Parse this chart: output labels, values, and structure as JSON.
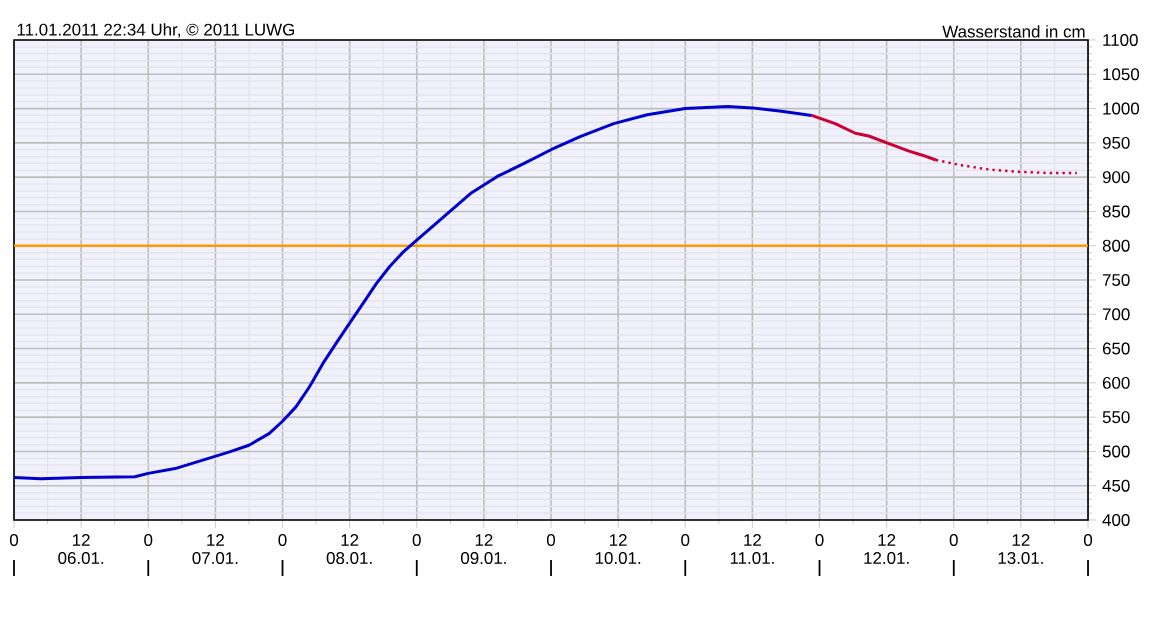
{
  "chart_data": {
    "type": "line",
    "title": "11.01.2011 22:34 Uhr, © 2011 LUWG",
    "ylabel": "Wasserstand in cm",
    "xlim": [
      "2011-01-06T00:00",
      "2011-01-14T00:00"
    ],
    "ylim": [
      400,
      1100
    ],
    "xticks": [
      {
        "value": "2011-01-06T00:00",
        "label": "0"
      },
      {
        "value": "2011-01-06T12:00",
        "label": "12"
      },
      {
        "value": "2011-01-07T00:00",
        "label": "0"
      },
      {
        "value": "2011-01-07T12:00",
        "label": "12"
      },
      {
        "value": "2011-01-08T00:00",
        "label": "0"
      },
      {
        "value": "2011-01-08T12:00",
        "label": "12"
      },
      {
        "value": "2011-01-09T00:00",
        "label": "0"
      },
      {
        "value": "2011-01-09T12:00",
        "label": "12"
      },
      {
        "value": "2011-01-10T00:00",
        "label": "0"
      },
      {
        "value": "2011-01-10T12:00",
        "label": "12"
      },
      {
        "value": "2011-01-11T00:00",
        "label": "0"
      },
      {
        "value": "2011-01-11T12:00",
        "label": "12"
      },
      {
        "value": "2011-01-12T00:00",
        "label": "0"
      },
      {
        "value": "2011-01-12T12:00",
        "label": "12"
      },
      {
        "value": "2011-01-13T00:00",
        "label": "0"
      },
      {
        "value": "2011-01-13T12:00",
        "label": "12"
      },
      {
        "value": "2011-01-14T00:00",
        "label": "0"
      }
    ],
    "x2lim": [
      "2011-01-06T00:00",
      "2011-01-14T00:00"
    ],
    "x2ticks": [
      {
        "value": "2011-01-06T00:00",
        "label": null
      },
      {
        "value": "2011-01-06T12:00",
        "label": "06.01."
      },
      {
        "value": "2011-01-07T00:00",
        "label": null
      },
      {
        "value": "2011-01-07T12:00",
        "label": "07.01."
      },
      {
        "value": "2011-01-08T00:00",
        "label": null
      },
      {
        "value": "2011-01-08T12:00",
        "label": "08.01."
      },
      {
        "value": "2011-01-09T00:00",
        "label": null
      },
      {
        "value": "2011-01-09T12:00",
        "label": "09.01."
      },
      {
        "value": "2011-01-10T00:00",
        "label": null
      },
      {
        "value": "2011-01-10T12:00",
        "label": "10.01."
      },
      {
        "value": "2011-01-11T00:00",
        "label": null
      },
      {
        "value": "2011-01-11T12:00",
        "label": "11.01."
      },
      {
        "value": "2011-01-12T00:00",
        "label": null
      },
      {
        "value": "2011-01-12T12:00",
        "label": "12.01."
      },
      {
        "value": "2011-01-13T00:00",
        "label": null
      },
      {
        "value": "2011-01-13T12:00",
        "label": "13.01."
      },
      {
        "value": "2011-01-14T00:00",
        "label": null
      }
    ],
    "yticks": [
      400,
      450,
      500,
      550,
      600,
      650,
      700,
      750,
      800,
      850,
      900,
      950,
      1000,
      1050,
      1100
    ],
    "grid": true,
    "ref_lines": [
      {
        "axis": "y",
        "value": 800,
        "color": "#ff9900"
      }
    ],
    "series": [
      {
        "color": "#0000cc",
        "x": [
          "2011-01-06T00:00",
          "2011-01-06T04:48",
          "2011-01-06T12:00",
          "2011-01-06T21:36",
          "2011-01-07T00:00",
          "2011-01-07T04:48",
          "2011-01-07T09:36",
          "2011-01-07T14:24",
          "2011-01-07T18:00",
          "2011-01-07T21:36",
          "2011-01-08T00:00",
          "2011-01-08T02:24",
          "2011-01-08T04:48",
          "2011-01-08T07:12",
          "2011-01-08T09:36",
          "2011-01-08T12:00",
          "2011-01-08T14:24",
          "2011-01-08T16:48",
          "2011-01-08T19:12",
          "2011-01-08T21:36",
          "2011-01-09T00:00",
          "2011-01-09T04:48",
          "2011-01-09T09:36",
          "2011-01-09T14:24",
          "2011-01-09T19:12",
          "2011-01-10T00:00",
          "2011-01-10T05:12",
          "2011-01-10T11:12",
          "2011-01-10T17:12",
          "2011-01-11T00:00",
          "2011-01-11T07:36",
          "2011-01-11T12:00",
          "2011-01-11T17:12",
          "2011-01-11T22:36"
        ],
        "values": [
          462,
          460,
          462,
          463,
          468,
          475,
          487,
          499,
          509,
          526,
          544,
          565,
          594,
          628,
          658,
          687,
          716,
          745,
          770,
          791,
          808,
          842,
          876,
          901,
          920,
          940,
          959,
          978,
          991,
          1000,
          1003,
          1001,
          996,
          990
        ]
      },
      {
        "color": "#cc0033",
        "x": [
          "2011-01-11T22:36",
          "2011-01-12T02:48",
          "2011-01-12T06:24",
          "2011-01-12T08:48",
          "2011-01-12T12:24",
          "2011-01-12T16:00",
          "2011-01-12T18:24",
          "2011-01-12T20:48"
        ],
        "values": [
          990,
          978,
          964,
          960,
          949,
          938,
          932,
          925
        ]
      },
      {
        "color": "#cc0033",
        "line_style": "dotted",
        "x": [
          "2011-01-12T20:48",
          "2011-01-13T01:36",
          "2011-01-13T06:24",
          "2011-01-13T11:12",
          "2011-01-13T17:12",
          "2011-01-13T22:00"
        ],
        "values": [
          925,
          917,
          911,
          908,
          906,
          906
        ]
      }
    ]
  }
}
